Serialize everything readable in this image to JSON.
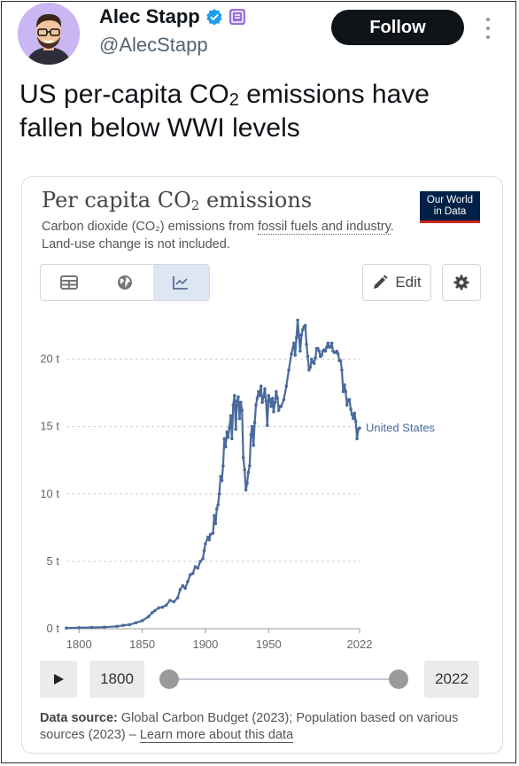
{
  "user": {
    "name": "Alec Stapp",
    "handle": "@AlecStapp",
    "follow_label": "Follow"
  },
  "tweet": {
    "text_before_sub": "US per-capita CO",
    "subscript": "2",
    "text_after_sub": " emissions have fallen below WWI levels"
  },
  "card": {
    "title_before_sub": "Per capita CO",
    "title_sub": "2",
    "title_after_sub": " emissions",
    "subtitle_part1": "Carbon dioxide (CO₂) emissions from ",
    "subtitle_link": "fossil fuels and industry",
    "subtitle_part2": ". Land-use change is not included.",
    "logo_line1": "Our World",
    "logo_line2": "in Data",
    "edit_label": "Edit",
    "start_year": "1800",
    "end_year": "2022",
    "source_label": "Data source:",
    "source_text": " Global Carbon Budget (2023); Population based on various sources (2023) – ",
    "source_link": "Learn more about this data"
  },
  "colors": {
    "line": "#4a6a9c",
    "follow_bg": "#0f1419",
    "avatar_bg": "#c9b6f2",
    "owid_navy": "#002147",
    "owid_red": "#ce261e",
    "verified": "#1d9bf0",
    "affiliate": "#9a6ddb"
  },
  "icons": [
    "verified-badge-icon",
    "affiliate-badge-icon",
    "more-icon",
    "table-icon",
    "globe-icon",
    "line-chart-icon",
    "pencil-icon",
    "gear-icon",
    "play-icon"
  ],
  "chart_data": {
    "type": "line",
    "title": "Per capita CO₂ emissions",
    "y_tick_labels": [
      "0 t",
      "5 t",
      "10 t",
      "15 t",
      "20 t"
    ],
    "y_ticks": [
      0,
      5,
      10,
      15,
      20
    ],
    "x_tick_labels": [
      "1800",
      "1850",
      "1900",
      "1950",
      "2022"
    ],
    "x_ticks": [
      1800,
      1850,
      1900,
      1950,
      2022
    ],
    "xlim": [
      1790,
      2022
    ],
    "ylim": [
      0,
      23
    ],
    "grid": true,
    "series": [
      {
        "name": "United States",
        "points": [
          [
            1790,
            0.05
          ],
          [
            1800,
            0.08
          ],
          [
            1810,
            0.1
          ],
          [
            1820,
            0.12
          ],
          [
            1830,
            0.18
          ],
          [
            1835,
            0.25
          ],
          [
            1840,
            0.3
          ],
          [
            1845,
            0.45
          ],
          [
            1850,
            0.6
          ],
          [
            1855,
            0.9
          ],
          [
            1858,
            1.2
          ],
          [
            1860,
            1.35
          ],
          [
            1863,
            1.55
          ],
          [
            1866,
            1.6
          ],
          [
            1869,
            1.75
          ],
          [
            1872,
            2.1
          ],
          [
            1875,
            2.0
          ],
          [
            1878,
            2.3
          ],
          [
            1880,
            2.9
          ],
          [
            1882,
            3.2
          ],
          [
            1884,
            3.0
          ],
          [
            1886,
            3.5
          ],
          [
            1888,
            4.0
          ],
          [
            1890,
            4.1
          ],
          [
            1892,
            4.6
          ],
          [
            1894,
            4.5
          ],
          [
            1896,
            5.0
          ],
          [
            1898,
            5.2
          ],
          [
            1899,
            5.8
          ],
          [
            1900,
            6.3
          ],
          [
            1902,
            6.8
          ],
          [
            1903,
            6.6
          ],
          [
            1904,
            7.0
          ],
          [
            1906,
            7.1
          ],
          [
            1907,
            8.4
          ],
          [
            1908,
            7.8
          ],
          [
            1909,
            8.9
          ],
          [
            1910,
            9.2
          ],
          [
            1911,
            10.0
          ],
          [
            1912,
            11.3
          ],
          [
            1913,
            11.0
          ],
          [
            1914,
            12.1
          ],
          [
            1915,
            14.1
          ],
          [
            1916,
            13.5
          ],
          [
            1917,
            14.6
          ],
          [
            1918,
            14.2
          ],
          [
            1919,
            14.9
          ],
          [
            1920,
            15.8
          ],
          [
            1921,
            14.1
          ],
          [
            1922,
            16.6
          ],
          [
            1923,
            17.3
          ],
          [
            1924,
            14.8
          ],
          [
            1925,
            16.9
          ],
          [
            1926,
            17.2
          ],
          [
            1927,
            15.6
          ],
          [
            1928,
            16.8
          ],
          [
            1929,
            16.2
          ],
          [
            1930,
            12.7
          ],
          [
            1931,
            11.8
          ],
          [
            1932,
            10.3
          ],
          [
            1933,
            10.8
          ],
          [
            1934,
            11.6
          ],
          [
            1935,
            12.1
          ],
          [
            1936,
            14.4
          ],
          [
            1937,
            15.0
          ],
          [
            1938,
            13.6
          ],
          [
            1939,
            15.3
          ],
          [
            1940,
            16.6
          ],
          [
            1941,
            17.1
          ],
          [
            1942,
            17.6
          ],
          [
            1943,
            17.3
          ],
          [
            1944,
            18.0
          ],
          [
            1945,
            16.8
          ],
          [
            1946,
            17.2
          ],
          [
            1947,
            17.8
          ],
          [
            1948,
            16.9
          ],
          [
            1949,
            15.1
          ],
          [
            1950,
            17.3
          ],
          [
            1951,
            17.0
          ],
          [
            1952,
            16.5
          ],
          [
            1953,
            17.1
          ],
          [
            1954,
            16.1
          ],
          [
            1955,
            16.8
          ],
          [
            1956,
            17.6
          ],
          [
            1957,
            17.1
          ],
          [
            1958,
            16.2
          ],
          [
            1959,
            16.5
          ],
          [
            1960,
            16.5
          ],
          [
            1962,
            17.0
          ],
          [
            1964,
            18.0
          ],
          [
            1966,
            19.2
          ],
          [
            1968,
            20.4
          ],
          [
            1970,
            21.2
          ],
          [
            1971,
            20.3
          ],
          [
            1972,
            21.6
          ],
          [
            1973,
            22.9
          ],
          [
            1974,
            21.8
          ],
          [
            1975,
            20.6
          ],
          [
            1976,
            21.8
          ],
          [
            1977,
            22.2
          ],
          [
            1978,
            22.4
          ],
          [
            1979,
            22.5
          ],
          [
            1980,
            21.1
          ],
          [
            1981,
            20.2
          ],
          [
            1982,
            19.2
          ],
          [
            1983,
            19.4
          ],
          [
            1984,
            20.0
          ],
          [
            1985,
            19.8
          ],
          [
            1986,
            19.7
          ],
          [
            1987,
            20.1
          ],
          [
            1988,
            20.8
          ],
          [
            1989,
            20.8
          ],
          [
            1990,
            20.6
          ],
          [
            1991,
            20.2
          ],
          [
            1992,
            20.3
          ],
          [
            1993,
            20.6
          ],
          [
            1994,
            20.7
          ],
          [
            1995,
            20.6
          ],
          [
            1996,
            20.9
          ],
          [
            1997,
            21.2
          ],
          [
            1998,
            20.9
          ],
          [
            1999,
            20.9
          ],
          [
            2000,
            21.2
          ],
          [
            2001,
            20.6
          ],
          [
            2002,
            20.5
          ],
          [
            2003,
            20.5
          ],
          [
            2004,
            20.6
          ],
          [
            2005,
            20.4
          ],
          [
            2006,
            19.9
          ],
          [
            2007,
            19.9
          ],
          [
            2008,
            19.2
          ],
          [
            2009,
            17.6
          ],
          [
            2010,
            18.1
          ],
          [
            2011,
            17.6
          ],
          [
            2012,
            16.6
          ],
          [
            2013,
            17.0
          ],
          [
            2014,
            17.0
          ],
          [
            2015,
            16.3
          ],
          [
            2016,
            15.9
          ],
          [
            2017,
            15.6
          ],
          [
            2018,
            16.0
          ],
          [
            2019,
            15.4
          ],
          [
            2020,
            14.1
          ],
          [
            2021,
            14.8
          ],
          [
            2022,
            14.9
          ]
        ]
      }
    ]
  }
}
